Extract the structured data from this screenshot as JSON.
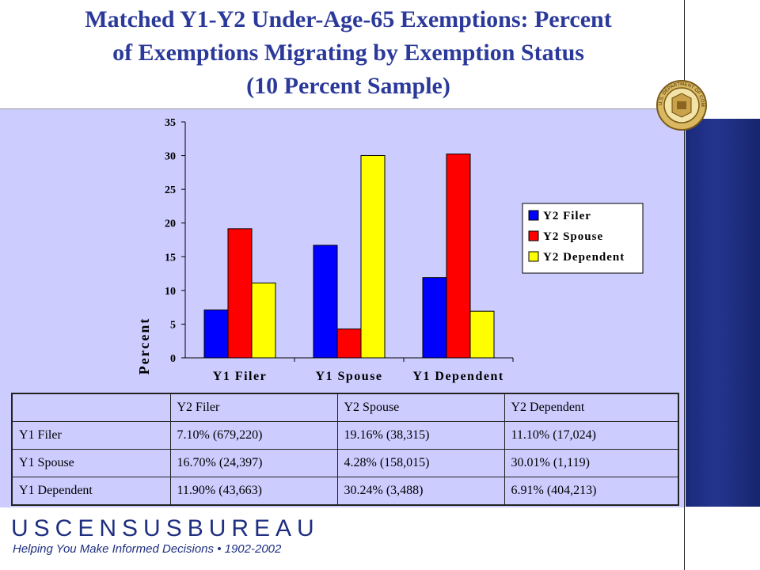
{
  "slide": {
    "title_lines": [
      "Matched Y1-Y2 Under-Age-65 Exemptions:  Percent",
      "of Exemptions  Migrating by Exemption  Status",
      "(10 Percent Sample)"
    ],
    "brand": "USCENSUSBUREAU",
    "tagline": "Helping You Make Informed Decisions • 1902-2002",
    "seal_text": "U.S. DEPARTMENT OF COMMERCE"
  },
  "chart_data": {
    "type": "bar",
    "categories": [
      "Y1 Filer",
      "Y1 Spouse",
      "Y1 Dependent"
    ],
    "series": [
      {
        "name": "Y2 Filer",
        "color": "#0000ff",
        "values": [
          7.1,
          16.7,
          11.9
        ]
      },
      {
        "name": "Y2 Spouse",
        "color": "#ff0000",
        "values": [
          19.16,
          4.28,
          30.24
        ]
      },
      {
        "name": "Y2 Dependent",
        "color": "#ffff00",
        "values": [
          11.1,
          30.01,
          6.91
        ]
      }
    ],
    "ylabel": "Percent",
    "ylim": [
      0,
      35
    ],
    "yticks": [
      0,
      5,
      10,
      15,
      20,
      25,
      30,
      35
    ],
    "legend_position": "right"
  },
  "table": {
    "header": [
      "",
      "Y2 Filer",
      "Y2 Spouse",
      "Y2 Dependent"
    ],
    "rows": [
      [
        "Y1 Filer",
        "7.10% (679,220)",
        "19.16% (38,315)",
        "11.10% (17,024)"
      ],
      [
        "Y1 Spouse",
        "16.70% (24,397)",
        "4.28% (158,015)",
        "30.01% (1,119)"
      ],
      [
        "Y1 Dependent",
        "11.90% (43,663)",
        "30.24% (3,488)",
        "6.91% (404,213)"
      ]
    ]
  }
}
